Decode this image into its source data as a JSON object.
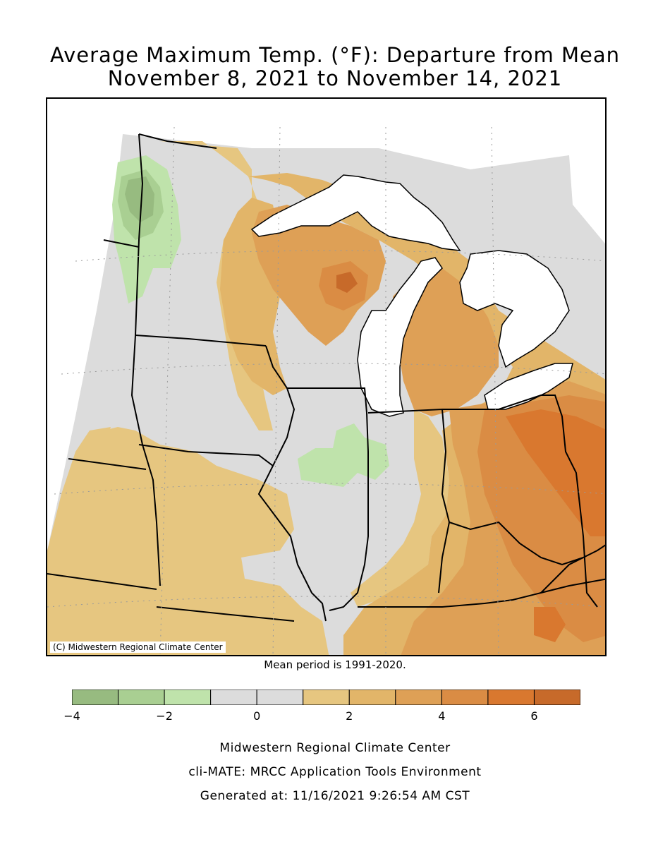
{
  "title": {
    "line1": "Average Maximum Temp. (°F): Departure from Mean",
    "line2": "November 8, 2021 to November 14, 2021"
  },
  "map": {
    "copyright": "(C) Midwestern Regional Climate Center",
    "mean_note": "Mean period is 1991-2020.",
    "ocean_color": "#ffffff",
    "boundary_color": "#000000",
    "graticule": "dotted grey"
  },
  "legend": {
    "bins": [
      {
        "from": -4,
        "to": -3,
        "color": "#97bb80"
      },
      {
        "from": -3,
        "to": -2,
        "color": "#a9cf92"
      },
      {
        "from": -2,
        "to": -1,
        "color": "#bfe3ab"
      },
      {
        "from": -1,
        "to": 0,
        "color": "#dcdcdc"
      },
      {
        "from": 0,
        "to": 1,
        "color": "#dcdcdc"
      },
      {
        "from": 1,
        "to": 2,
        "color": "#e6c680"
      },
      {
        "from": 2,
        "to": 3,
        "color": "#e2b569"
      },
      {
        "from": 3,
        "to": 4,
        "color": "#dea056"
      },
      {
        "from": 4,
        "to": 5,
        "color": "#da8c44"
      },
      {
        "from": 5,
        "to": 6,
        "color": "#d9782f"
      },
      {
        "from": 6,
        "to": 7,
        "color": "#c76a2a"
      }
    ],
    "tick_labels": [
      "-4",
      "-2",
      "0",
      "2",
      "4",
      "6"
    ]
  },
  "footer": {
    "line1": "Midwestern Regional Climate Center",
    "line2": "cli-MATE: MRCC Application Tools Environment",
    "line3": "Generated at: 11/16/2021 9:26:54 AM CST"
  }
}
